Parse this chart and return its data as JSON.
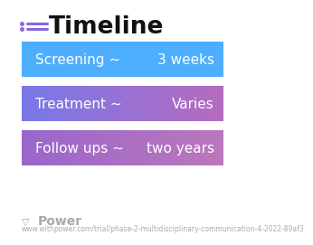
{
  "title": "Timeline",
  "background_color": "#ffffff",
  "rows": [
    {
      "label": "Screening ~",
      "value": "3 weeks",
      "color_left": "#4daeff",
      "color_right": "#4daeff"
    },
    {
      "label": "Treatment ~",
      "value": "Varies",
      "color_left": "#7878e8",
      "color_right": "#b56bbf"
    },
    {
      "label": "Follow ups ~",
      "value": "two years",
      "color_left": "#9966cc",
      "color_right": "#bb77bb"
    }
  ],
  "footer_logo": "Power",
  "footer_url": "www.withpower.com/trial/phase-2-multidisciplinary-communication-4-2022-89af3",
  "footer_color": "#aaaaaa",
  "title_fontsize": 19,
  "label_fontsize": 11,
  "value_fontsize": 11,
  "footer_fontsize": 5.5,
  "logo_fontsize": 10,
  "icon_color": "#8866dd",
  "title_color": "#111111"
}
